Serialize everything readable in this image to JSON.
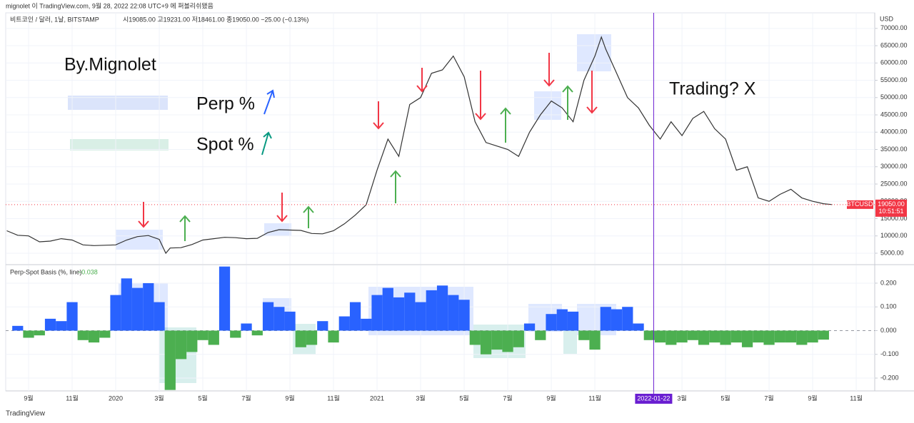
{
  "header": "mignolet 이 TradingView.com, 9월 28, 2022 22:08 UTC+9 에 퍼블리쉬됐음",
  "footer": "TradingView",
  "chart_data": [
    {
      "type": "line",
      "symbol_title": "비트코인 / 달러, 1날, BITSTAMP",
      "ohlc": "시19085.00 고19231.00 저18461.00 종19050.00 −25.00 (−0.13%)",
      "y_label": "USD",
      "annotations": [
        "By.Mignolet",
        "Perp %",
        "Spot %",
        "Trading? X"
      ],
      "color": "#333333",
      "x": [
        -5,
        -4.5,
        -4,
        -3.5,
        -3,
        -2.5,
        -2,
        -1.5,
        -1,
        -0.5,
        0,
        0.5,
        1,
        1.5,
        2,
        2.3,
        2.5,
        3,
        3.5,
        4,
        4.5,
        5,
        5.5,
        6,
        6.5,
        7,
        7.5,
        8,
        8.5,
        9,
        9.5,
        10,
        10.5,
        11,
        11.5,
        12,
        12.5,
        13,
        13.5,
        14,
        14.5,
        15,
        15.5,
        16,
        16.5,
        17,
        17.5,
        18,
        18.5,
        19,
        19.5,
        20,
        20.5,
        21,
        21.5,
        22,
        22.3,
        22.5,
        23,
        23.5,
        24,
        24.5,
        25,
        25.5,
        26,
        26.5,
        27,
        27.5,
        28,
        28.5,
        29,
        29.5,
        30,
        30.5,
        31,
        31.5,
        32,
        32.5,
        32.9
      ],
      "values": [
        11500,
        10200,
        10000,
        8300,
        8500,
        9200,
        8800,
        7400,
        7200,
        7300,
        7400,
        8800,
        9800,
        10100,
        9000,
        5000,
        6500,
        6600,
        7500,
        8800,
        9200,
        9600,
        9500,
        9200,
        9300,
        11000,
        11800,
        11700,
        11600,
        10700,
        10600,
        11500,
        13500,
        16000,
        19000,
        29000,
        38000,
        33000,
        48000,
        50000,
        57000,
        58000,
        62000,
        56000,
        43000,
        37000,
        36000,
        35000,
        33000,
        40000,
        45000,
        49000,
        47000,
        43000,
        55000,
        62000,
        67500,
        64000,
        57000,
        50000,
        47000,
        42000,
        38000,
        43000,
        39000,
        44000,
        46000,
        41000,
        38000,
        29000,
        30000,
        21000,
        20000,
        22000,
        23500,
        21000,
        20000,
        19300,
        19050
      ],
      "last_price": {
        "value": 19050,
        "label": "19050.00"
      },
      "symbol": "BTCUSD",
      "last_time": "10:51:51",
      "xlim": [
        -5.05,
        34.85
      ],
      "ylim": [
        1900,
        74500
      ],
      "yticks": [
        {
          "value": 5000,
          "label": "5000.00"
        },
        {
          "value": 10000,
          "label": "10000.00"
        },
        {
          "value": 15000,
          "label": "15000.00"
        },
        {
          "value": 20000,
          "label": "20000.00"
        },
        {
          "value": 25000,
          "label": "25000.00"
        },
        {
          "value": 30000,
          "label": "30000.00"
        },
        {
          "value": 35000,
          "label": "35000.00"
        },
        {
          "value": 40000,
          "label": "40000.00"
        },
        {
          "value": 45000,
          "label": "45000.00"
        },
        {
          "value": 50000,
          "label": "50000.00"
        },
        {
          "value": 55000,
          "label": "55000.00"
        },
        {
          "value": 60000,
          "label": "60000.00"
        },
        {
          "value": 65000,
          "label": "65000.00"
        },
        {
          "value": 70000,
          "label": "70000.00"
        }
      ],
      "grid": true
    },
    {
      "type": "bar",
      "title": "Perp-Spot Basis (%, line)",
      "last_value": {
        "value": -0.038,
        "label": "−0.038"
      },
      "positive_color": "#2962ff",
      "negative_color": "#4caf50",
      "x": [
        -4.5,
        -4,
        -3.5,
        -3,
        -2.5,
        -2,
        -1.5,
        -1,
        -0.5,
        0,
        0.5,
        1,
        1.5,
        2,
        2.5,
        3,
        3.5,
        4,
        4.5,
        5,
        5.5,
        6,
        6.5,
        7,
        7.5,
        8,
        8.5,
        9,
        9.5,
        10,
        10.5,
        11,
        11.5,
        12,
        12.5,
        13,
        13.5,
        14,
        14.5,
        15,
        15.5,
        16,
        16.5,
        17,
        17.5,
        18,
        18.5,
        19,
        19.5,
        20,
        20.5,
        21,
        21.5,
        22,
        22.5,
        23,
        23.5,
        24,
        24.5,
        25,
        25.5,
        26,
        26.5,
        27,
        27.5,
        28,
        28.5,
        29,
        29.5,
        30,
        30.5,
        31,
        31.5,
        32,
        32.5
      ],
      "values": [
        0.02,
        -0.03,
        -0.02,
        0.05,
        0.04,
        0.12,
        -0.04,
        -0.05,
        -0.03,
        0.15,
        0.22,
        0.18,
        0.2,
        0.12,
        -0.25,
        -0.12,
        -0.09,
        -0.04,
        -0.06,
        0.27,
        -0.03,
        0.03,
        -0.02,
        0.12,
        0.1,
        0.08,
        -0.07,
        -0.06,
        0.04,
        -0.05,
        0.06,
        0.12,
        0.05,
        0.15,
        0.18,
        0.14,
        0.16,
        0.12,
        0.17,
        0.19,
        0.15,
        0.13,
        -0.06,
        -0.1,
        -0.08,
        -0.09,
        -0.07,
        0.03,
        -0.04,
        0.07,
        0.09,
        0.08,
        -0.04,
        -0.08,
        0.1,
        0.09,
        0.1,
        0.03,
        -0.04,
        -0.05,
        -0.06,
        -0.05,
        -0.04,
        -0.06,
        -0.05,
        -0.06,
        -0.05,
        -0.07,
        -0.05,
        -0.06,
        -0.05,
        -0.05,
        -0.06,
        -0.05,
        -0.038
      ],
      "xlim": [
        -5.05,
        34.85
      ],
      "ylim": [
        -0.254,
        0.275
      ],
      "yticks": [
        {
          "value": 0.2,
          "label": "0.200"
        },
        {
          "value": 0.1,
          "label": "0.100"
        },
        {
          "value": 0,
          "label": "0.000"
        },
        {
          "value": -0.1,
          "label": "-0.100"
        },
        {
          "value": -0.2,
          "label": "-0.200"
        }
      ],
      "xticks": [
        {
          "value": -4,
          "label": "9월"
        },
        {
          "value": -2,
          "label": "11월"
        },
        {
          "value": 0,
          "label": "2020"
        },
        {
          "value": 2,
          "label": "3월"
        },
        {
          "value": 4,
          "label": "5월"
        },
        {
          "value": 6,
          "label": "7월"
        },
        {
          "value": 8,
          "label": "9월"
        },
        {
          "value": 10,
          "label": "11월"
        },
        {
          "value": 12,
          "label": "2021"
        },
        {
          "value": 14,
          "label": "3월"
        },
        {
          "value": 16,
          "label": "5월"
        },
        {
          "value": 18,
          "label": "7월"
        },
        {
          "value": 20,
          "label": "9월"
        },
        {
          "value": 22,
          "label": "11월"
        },
        {
          "value": 26,
          "label": "3월"
        },
        {
          "value": 28,
          "label": "5월"
        },
        {
          "value": 30,
          "label": "7월"
        },
        {
          "value": 32,
          "label": "9월"
        },
        {
          "value": 34,
          "label": "11월"
        }
      ],
      "crosshair": {
        "value": 24.7,
        "label": "2022-01-22"
      },
      "grid": true
    }
  ]
}
